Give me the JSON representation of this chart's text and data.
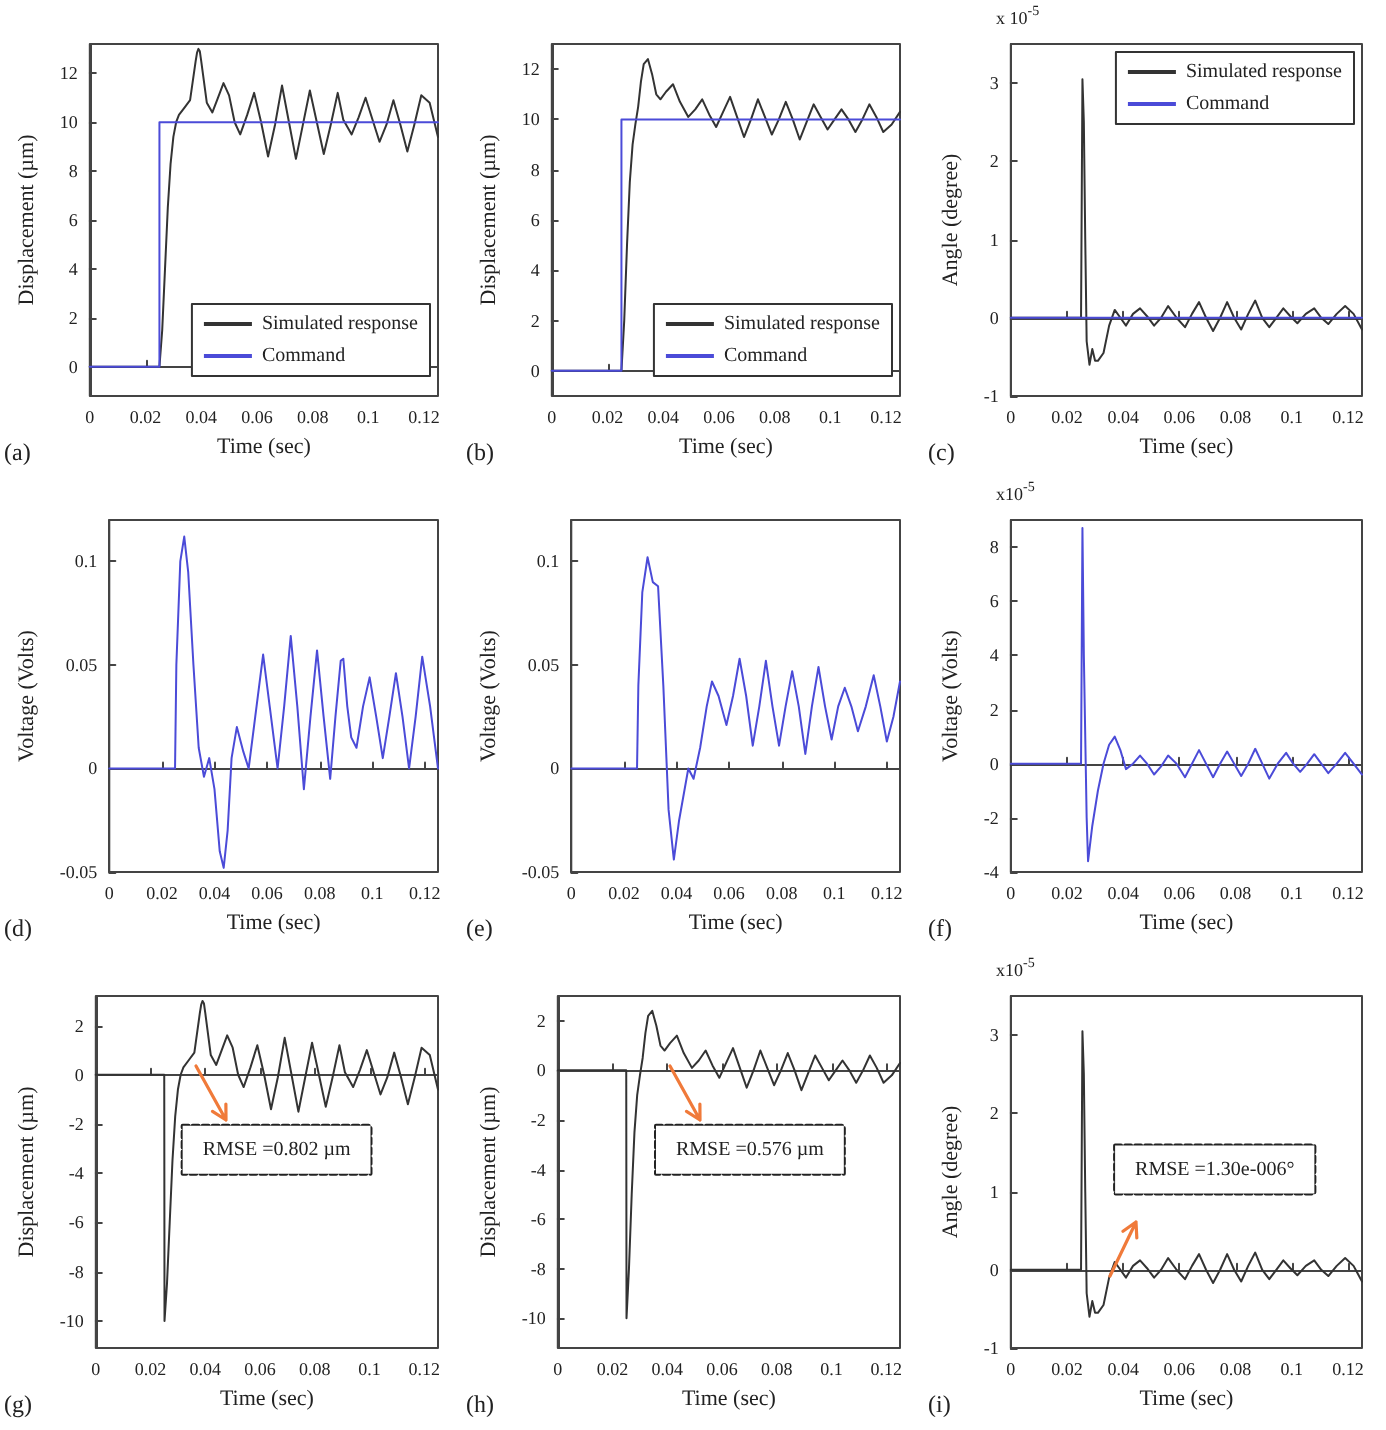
{
  "chart_data": [
    {
      "type": "line",
      "xlabel": "Time (sec)",
      "ylabel": "Displacement (µm)",
      "xlim": [
        0,
        0.125
      ],
      "xticks": [
        0,
        0.02,
        0.04,
        0.06,
        0.08,
        0.1,
        0.12
      ],
      "ylim": [
        -1.2,
        13.2
      ],
      "yticks": [
        0,
        2,
        4,
        6,
        8,
        10,
        12
      ],
      "legend": "bottom right",
      "annotations": [
        "(a)"
      ],
      "series": [
        {
          "name": "Simulated response",
          "color": "#333333",
          "x": [
            0,
            0.025,
            0.026,
            0.027,
            0.028,
            0.029,
            0.03,
            0.031,
            0.032,
            0.034,
            0.036,
            0.038,
            0.0385,
            0.039,
            0.0395,
            0.04,
            0.042,
            0.044,
            0.046,
            0.048,
            0.05,
            0.052,
            0.054,
            0.0565,
            0.059,
            0.0615,
            0.064,
            0.0665,
            0.069,
            0.0715,
            0.074,
            0.0765,
            0.079,
            0.0815,
            0.084,
            0.0865,
            0.089,
            0.091,
            0.094,
            0.0965,
            0.099,
            0.1015,
            0.104,
            0.1065,
            0.109,
            0.1115,
            0.114,
            0.1165,
            0.119,
            0.122,
            0.125
          ],
          "values": [
            0,
            0,
            1.5,
            4,
            6.5,
            8.3,
            9.4,
            10,
            10.3,
            10.6,
            10.9,
            12.5,
            12.85,
            13,
            12.9,
            12.5,
            10.8,
            10.4,
            11.0,
            11.6,
            11.1,
            10.0,
            9.5,
            10.3,
            11.2,
            10.0,
            8.6,
            9.9,
            11.5,
            10.0,
            8.5,
            9.9,
            11.3,
            10.0,
            8.7,
            9.9,
            11.2,
            10.1,
            9.5,
            10.2,
            11.0,
            10.1,
            9.2,
            9.9,
            10.9,
            9.9,
            8.8,
            9.9,
            11.1,
            10.8,
            9.4
          ]
        },
        {
          "name": "Command",
          "color": "#4b4bd8",
          "x": [
            0,
            0.025,
            0.025,
            0.125
          ],
          "values": [
            0,
            0,
            10,
            10
          ]
        }
      ]
    },
    {
      "type": "line",
      "xlabel": "Time (sec)",
      "ylabel": "Displacement (µm)",
      "xlim": [
        0,
        0.125
      ],
      "xticks": [
        0,
        0.02,
        0.04,
        0.06,
        0.08,
        0.1,
        0.12
      ],
      "ylim": [
        -1,
        13
      ],
      "yticks": [
        0,
        2,
        4,
        6,
        8,
        10,
        12
      ],
      "legend": "bottom right",
      "annotations": [
        "(b)"
      ],
      "series": [
        {
          "name": "Simulated response",
          "color": "#333333",
          "x": [
            0,
            0.025,
            0.026,
            0.027,
            0.028,
            0.029,
            0.03,
            0.031,
            0.032,
            0.033,
            0.0345,
            0.036,
            0.0375,
            0.039,
            0.041,
            0.0435,
            0.046,
            0.049,
            0.0515,
            0.054,
            0.0565,
            0.059,
            0.0615,
            0.064,
            0.0665,
            0.069,
            0.0715,
            0.074,
            0.0765,
            0.079,
            0.0815,
            0.084,
            0.0865,
            0.089,
            0.0915,
            0.094,
            0.0965,
            0.099,
            0.1015,
            0.104,
            0.1065,
            0.109,
            0.1115,
            0.114,
            0.1165,
            0.119,
            0.122,
            0.125
          ],
          "values": [
            0,
            0,
            2,
            5,
            7.5,
            9,
            9.8,
            10.5,
            11.5,
            12.2,
            12.4,
            11.8,
            11.0,
            10.8,
            11.1,
            11.4,
            10.7,
            10.1,
            10.4,
            10.8,
            10.2,
            9.7,
            10.3,
            10.9,
            10.1,
            9.3,
            10.0,
            10.8,
            10.1,
            9.4,
            10.0,
            10.7,
            10.0,
            9.2,
            9.9,
            10.6,
            10.1,
            9.6,
            10.0,
            10.4,
            10.0,
            9.5,
            10.0,
            10.6,
            10.1,
            9.5,
            9.8,
            10.3
          ]
        },
        {
          "name": "Command",
          "color": "#4b4bd8",
          "x": [
            0,
            0.025,
            0.025,
            0.125
          ],
          "values": [
            0,
            0,
            10,
            10
          ]
        }
      ]
    },
    {
      "type": "line",
      "xlabel": "Time (sec)",
      "ylabel": "Angle (degree)",
      "xlim": [
        0,
        0.125
      ],
      "xticks": [
        0,
        0.02,
        0.04,
        0.06,
        0.08,
        0.1,
        0.12
      ],
      "ylim": [
        -1,
        3.5
      ],
      "yticks": [
        -1,
        0,
        1,
        2,
        3
      ],
      "legend": "top right",
      "annotations": [
        "(c)",
        "x 10$^{-5}$"
      ],
      "series": [
        {
          "name": "Simulated response",
          "color": "#333333",
          "x": [
            0,
            0.025,
            0.0255,
            0.026,
            0.0265,
            0.027,
            0.028,
            0.029,
            0.03,
            0.031,
            0.033,
            0.035,
            0.037,
            0.039,
            0.041,
            0.0435,
            0.046,
            0.0485,
            0.051,
            0.0535,
            0.056,
            0.059,
            0.062,
            0.0645,
            0.067,
            0.0695,
            0.072,
            0.0745,
            0.077,
            0.0795,
            0.082,
            0.0845,
            0.087,
            0.0895,
            0.092,
            0.0945,
            0.097,
            0.0995,
            0.102,
            0.105,
            0.108,
            0.1105,
            0.113,
            0.116,
            0.119,
            0.122,
            0.125
          ],
          "values": [
            0,
            0,
            3.05,
            2.5,
            1.0,
            -0.3,
            -0.6,
            -0.4,
            -0.55,
            -0.55,
            -0.45,
            -0.1,
            0.1,
            0.0,
            -0.1,
            0.05,
            0.12,
            0.02,
            -0.1,
            0.0,
            0.15,
            0.0,
            -0.12,
            0.05,
            0.2,
            0.0,
            -0.17,
            0.0,
            0.2,
            0.0,
            -0.15,
            0.05,
            0.22,
            0.0,
            -0.12,
            0.0,
            0.12,
            0.02,
            -0.07,
            0.05,
            0.12,
            0.0,
            -0.08,
            0.05,
            0.15,
            0.05,
            -0.15
          ]
        },
        {
          "name": "Command",
          "color": "#4b4bd8",
          "x": [
            0,
            0.125
          ],
          "values": [
            0,
            0
          ]
        }
      ]
    },
    {
      "type": "line",
      "xlabel": "Time (sec)",
      "ylabel": "Voltage (Volts)",
      "xlim": [
        0,
        0.125
      ],
      "xticks": [
        0,
        0.02,
        0.04,
        0.06,
        0.08,
        0.1,
        0.12
      ],
      "ylim": [
        -0.05,
        0.12
      ],
      "yticks": [
        -0.05,
        0,
        0.05,
        0.1
      ],
      "annotations": [
        "(d)"
      ],
      "series": [
        {
          "color": "#4b4bd8",
          "x": [
            0,
            0.025,
            0.0255,
            0.027,
            0.0285,
            0.03,
            0.032,
            0.034,
            0.036,
            0.038,
            0.04,
            0.042,
            0.0435,
            0.045,
            0.0465,
            0.0485,
            0.051,
            0.053,
            0.0555,
            0.0585,
            0.061,
            0.064,
            0.0665,
            0.069,
            0.0715,
            0.074,
            0.0765,
            0.079,
            0.0815,
            0.084,
            0.086,
            0.088,
            0.089,
            0.0905,
            0.092,
            0.094,
            0.0965,
            0.099,
            0.1015,
            0.104,
            0.1065,
            0.109,
            0.1115,
            0.114,
            0.1165,
            0.119,
            0.122,
            0.125
          ],
          "values": [
            0,
            0,
            0.05,
            0.1,
            0.112,
            0.095,
            0.05,
            0.01,
            -0.004,
            0.005,
            -0.01,
            -0.04,
            -0.048,
            -0.03,
            0.005,
            0.02,
            0.008,
            0,
            0.025,
            0.055,
            0.03,
            0,
            0.03,
            0.064,
            0.03,
            -0.01,
            0.025,
            0.057,
            0.025,
            -0.005,
            0.025,
            0.052,
            0.053,
            0.03,
            0.015,
            0.01,
            0.03,
            0.044,
            0.025,
            0.005,
            0.025,
            0.046,
            0.025,
            0,
            0.025,
            0.054,
            0.03,
            0
          ]
        }
      ]
    },
    {
      "type": "line",
      "xlabel": "Time (sec)",
      "ylabel": "Voltage (Volts)",
      "xlim": [
        0,
        0.125
      ],
      "xticks": [
        0,
        0.02,
        0.04,
        0.06,
        0.08,
        0.1,
        0.12
      ],
      "ylim": [
        -0.05,
        0.12
      ],
      "yticks": [
        -0.05,
        0,
        0.05,
        0.1
      ],
      "annotations": [
        "(e)"
      ],
      "series": [
        {
          "color": "#4b4bd8",
          "x": [
            0,
            0.025,
            0.0255,
            0.027,
            0.029,
            0.031,
            0.033,
            0.035,
            0.037,
            0.039,
            0.041,
            0.0445,
            0.0465,
            0.049,
            0.0515,
            0.0535,
            0.056,
            0.059,
            0.0615,
            0.064,
            0.0665,
            0.069,
            0.0715,
            0.074,
            0.0765,
            0.079,
            0.0815,
            0.084,
            0.0865,
            0.089,
            0.0915,
            0.094,
            0.0965,
            0.099,
            0.1015,
            0.104,
            0.1065,
            0.109,
            0.112,
            0.115,
            0.1175,
            0.12,
            0.1225,
            0.125
          ],
          "values": [
            0,
            0,
            0.04,
            0.085,
            0.102,
            0.09,
            0.088,
            0.04,
            -0.02,
            -0.044,
            -0.025,
            0,
            -0.005,
            0.01,
            0.03,
            0.042,
            0.035,
            0.021,
            0.035,
            0.053,
            0.035,
            0.011,
            0.03,
            0.052,
            0.03,
            0.011,
            0.03,
            0.047,
            0.03,
            0.007,
            0.03,
            0.049,
            0.03,
            0.014,
            0.03,
            0.039,
            0.03,
            0.018,
            0.03,
            0.045,
            0.03,
            0.013,
            0.025,
            0.042
          ]
        }
      ]
    },
    {
      "type": "line",
      "xlabel": "Time (sec)",
      "ylabel": "Voltage (Volts)",
      "xlim": [
        0,
        0.125
      ],
      "xticks": [
        0,
        0.02,
        0.04,
        0.06,
        0.08,
        0.1,
        0.12
      ],
      "ylim": [
        -4,
        9
      ],
      "yticks": [
        -4,
        -2,
        0,
        2,
        4,
        6,
        8
      ],
      "annotations": [
        "(f)",
        "x10$^{-5}$"
      ],
      "series": [
        {
          "color": "#4b4bd8",
          "x": [
            0,
            0.025,
            0.0255,
            0.026,
            0.027,
            0.0275,
            0.029,
            0.031,
            0.033,
            0.035,
            0.037,
            0.039,
            0.041,
            0.0435,
            0.046,
            0.0485,
            0.051,
            0.0535,
            0.056,
            0.059,
            0.062,
            0.0645,
            0.067,
            0.0695,
            0.072,
            0.0745,
            0.077,
            0.0795,
            0.082,
            0.0845,
            0.087,
            0.0895,
            0.092,
            0.095,
            0.098,
            0.1005,
            0.103,
            0.1055,
            0.108,
            0.1105,
            0.113,
            0.116,
            0.119,
            0.122,
            0.125
          ],
          "values": [
            0,
            0,
            8.7,
            4,
            -2,
            -3.6,
            -2.3,
            -1,
            0,
            0.7,
            1.0,
            0.5,
            -0.2,
            0,
            0.3,
            0,
            -0.4,
            -0.1,
            0.3,
            0,
            -0.5,
            0,
            0.5,
            0,
            -0.5,
            0,
            0.45,
            0,
            -0.45,
            0,
            0.55,
            0,
            -0.55,
            0,
            0.4,
            0,
            -0.3,
            0,
            0.35,
            0,
            -0.35,
            0,
            0.4,
            0,
            -0.4
          ]
        }
      ]
    },
    {
      "type": "line",
      "xlabel": "Time (sec)",
      "ylabel": "Displacement (µm)",
      "xlim": [
        0,
        0.125
      ],
      "xticks": [
        0,
        0.02,
        0.04,
        0.06,
        0.08,
        0.1,
        0.12
      ],
      "ylim": [
        -11.1,
        3.2
      ],
      "yticks": [
        -10,
        -8,
        -6,
        -4,
        -2,
        0,
        2
      ],
      "annotations": [
        "(g)",
        "RMSE =0.802 µm"
      ],
      "series": [
        {
          "color": "#333333",
          "x": [
            0,
            0.025,
            0.0251,
            0.026,
            0.027,
            0.028,
            0.029,
            0.03,
            0.031,
            0.032,
            0.034,
            0.036,
            0.038,
            0.0385,
            0.039,
            0.0395,
            0.04,
            0.042,
            0.044,
            0.046,
            0.048,
            0.05,
            0.052,
            0.054,
            0.0565,
            0.059,
            0.0615,
            0.064,
            0.0665,
            0.069,
            0.0715,
            0.074,
            0.0765,
            0.079,
            0.0815,
            0.084,
            0.0865,
            0.089,
            0.091,
            0.094,
            0.0965,
            0.099,
            0.1015,
            0.104,
            0.1065,
            0.109,
            0.1115,
            0.114,
            0.1165,
            0.119,
            0.122,
            0.125
          ],
          "values": [
            0,
            0,
            -10,
            -8.5,
            -6,
            -3.5,
            -1.7,
            -0.6,
            0,
            0.3,
            0.6,
            0.9,
            2.5,
            2.85,
            3,
            2.9,
            2.5,
            0.8,
            0.4,
            1,
            1.6,
            1.1,
            0,
            -0.5,
            0.3,
            1.2,
            0,
            -1.4,
            -0.1,
            1.5,
            0,
            -1.5,
            -0.1,
            1.3,
            0,
            -1.3,
            -0.1,
            1.2,
            0.1,
            -0.5,
            0.2,
            1,
            0.1,
            -0.8,
            -0.1,
            0.9,
            -0.1,
            -1.2,
            -0.1,
            1.1,
            0.8,
            -0.6
          ]
        }
      ]
    },
    {
      "type": "line",
      "xlabel": "Time (sec)",
      "ylabel": "Displacement (µm)",
      "xlim": [
        0,
        0.125
      ],
      "xticks": [
        0,
        0.02,
        0.04,
        0.06,
        0.08,
        0.1,
        0.12
      ],
      "ylim": [
        -11.2,
        3
      ],
      "yticks": [
        -10,
        -8,
        -6,
        -4,
        -2,
        0,
        2
      ],
      "annotations": [
        "(h)",
        "RMSE =0.576 µm"
      ],
      "series": [
        {
          "color": "#333333",
          "x": [
            0,
            0.025,
            0.0251,
            0.026,
            0.027,
            0.028,
            0.029,
            0.03,
            0.031,
            0.032,
            0.033,
            0.0345,
            0.036,
            0.0375,
            0.039,
            0.041,
            0.0435,
            0.046,
            0.049,
            0.0515,
            0.054,
            0.0565,
            0.059,
            0.0615,
            0.064,
            0.0665,
            0.069,
            0.0715,
            0.074,
            0.0765,
            0.079,
            0.0815,
            0.084,
            0.0865,
            0.089,
            0.0915,
            0.094,
            0.0965,
            0.099,
            0.1015,
            0.104,
            0.1065,
            0.109,
            0.1115,
            0.114,
            0.1165,
            0.119,
            0.122,
            0.125
          ],
          "values": [
            0,
            0,
            -10,
            -8,
            -5,
            -2.5,
            -1,
            -0.2,
            0.5,
            1.5,
            2.2,
            2.4,
            1.8,
            1,
            0.8,
            1.1,
            1.4,
            0.7,
            0.1,
            0.4,
            0.8,
            0.2,
            -0.3,
            0.3,
            0.9,
            0.1,
            -0.7,
            0,
            0.8,
            0.1,
            -0.6,
            0,
            0.7,
            0,
            -0.8,
            -0.1,
            0.6,
            0.1,
            -0.4,
            0,
            0.4,
            0,
            -0.5,
            0,
            0.6,
            0.1,
            -0.5,
            -0.2,
            0.3
          ]
        }
      ]
    },
    {
      "type": "line",
      "xlabel": "Time (sec)",
      "ylabel": "Angle (degree)",
      "xlim": [
        0,
        0.125
      ],
      "xticks": [
        0,
        0.02,
        0.04,
        0.06,
        0.08,
        0.1,
        0.12
      ],
      "ylim": [
        -1,
        3.5
      ],
      "yticks": [
        -1,
        0,
        1,
        2,
        3
      ],
      "annotations": [
        "(i)",
        "x10$^{-5}$",
        "RMSE =1.30e-006°"
      ],
      "series": [
        {
          "color": "#333333",
          "x": [
            0,
            0.025,
            0.0255,
            0.026,
            0.0265,
            0.027,
            0.028,
            0.029,
            0.03,
            0.031,
            0.033,
            0.035,
            0.037,
            0.039,
            0.041,
            0.0435,
            0.046,
            0.0485,
            0.051,
            0.0535,
            0.056,
            0.059,
            0.062,
            0.0645,
            0.067,
            0.0695,
            0.072,
            0.0745,
            0.077,
            0.0795,
            0.082,
            0.0845,
            0.087,
            0.0895,
            0.092,
            0.0945,
            0.097,
            0.0995,
            0.102,
            0.105,
            0.108,
            0.1105,
            0.113,
            0.116,
            0.119,
            0.122,
            0.125
          ],
          "values": [
            0,
            0,
            3.05,
            2.5,
            1.0,
            -0.3,
            -0.6,
            -0.4,
            -0.55,
            -0.55,
            -0.45,
            -0.1,
            0.1,
            0.0,
            -0.1,
            0.05,
            0.12,
            0.02,
            -0.1,
            0.0,
            0.15,
            0.0,
            -0.12,
            0.05,
            0.2,
            0.0,
            -0.17,
            0.0,
            0.2,
            0.0,
            -0.15,
            0.05,
            0.22,
            0.0,
            -0.12,
            0.0,
            0.12,
            0.02,
            -0.07,
            0.05,
            0.12,
            0.0,
            -0.08,
            0.05,
            0.15,
            0.05,
            -0.15
          ]
        }
      ]
    }
  ]
}
